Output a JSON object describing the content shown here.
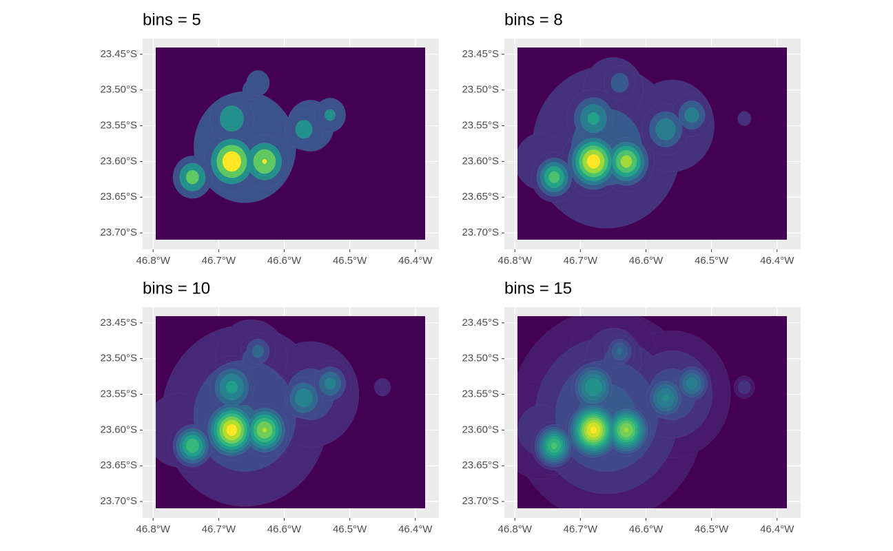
{
  "chart_data": [
    {
      "type": "contour",
      "title": "bins = 5",
      "bins": 5,
      "grid": true,
      "xlim": [
        -46.816,
        -46.364
      ],
      "ylim": [
        -23.723,
        -23.428
      ],
      "xticks": [
        {
          "value": -46.8,
          "label": "46.8°W"
        },
        {
          "value": -46.7,
          "label": "46.7°W"
        },
        {
          "value": -46.6,
          "label": "46.6°W"
        },
        {
          "value": -46.5,
          "label": "46.5°W"
        },
        {
          "value": -46.4,
          "label": "46.4°W"
        }
      ],
      "yticks": [
        {
          "value": -23.45,
          "label": "23.45°S"
        },
        {
          "value": -23.5,
          "label": "23.50°S"
        },
        {
          "value": -23.55,
          "label": "23.55°S"
        },
        {
          "value": -23.6,
          "label": "23.60°S"
        },
        {
          "value": -23.65,
          "label": "23.65°S"
        },
        {
          "value": -23.7,
          "label": "23.70°S"
        }
      ]
    },
    {
      "type": "contour",
      "title": "bins = 8",
      "bins": 8,
      "grid": true,
      "xlim": [
        -46.816,
        -46.364
      ],
      "ylim": [
        -23.723,
        -23.428
      ],
      "xticks": [
        {
          "value": -46.8,
          "label": "46.8°W"
        },
        {
          "value": -46.7,
          "label": "46.7°W"
        },
        {
          "value": -46.6,
          "label": "46.6°W"
        },
        {
          "value": -46.5,
          "label": "46.5°W"
        },
        {
          "value": -46.4,
          "label": "46.4°W"
        }
      ],
      "yticks": [
        {
          "value": -23.45,
          "label": "23.45°S"
        },
        {
          "value": -23.5,
          "label": "23.50°S"
        },
        {
          "value": -23.55,
          "label": "23.55°S"
        },
        {
          "value": -23.6,
          "label": "23.60°S"
        },
        {
          "value": -23.65,
          "label": "23.65°S"
        },
        {
          "value": -23.7,
          "label": "23.70°S"
        }
      ]
    },
    {
      "type": "contour",
      "title": "bins = 10",
      "bins": 10,
      "grid": true,
      "xlim": [
        -46.816,
        -46.364
      ],
      "ylim": [
        -23.723,
        -23.428
      ],
      "xticks": [
        {
          "value": -46.8,
          "label": "46.8°W"
        },
        {
          "value": -46.7,
          "label": "46.7°W"
        },
        {
          "value": -46.6,
          "label": "46.6°W"
        },
        {
          "value": -46.5,
          "label": "46.5°W"
        },
        {
          "value": -46.4,
          "label": "46.4°W"
        }
      ],
      "yticks": [
        {
          "value": -23.45,
          "label": "23.45°S"
        },
        {
          "value": -23.5,
          "label": "23.50°S"
        },
        {
          "value": -23.55,
          "label": "23.55°S"
        },
        {
          "value": -23.6,
          "label": "23.60°S"
        },
        {
          "value": -23.65,
          "label": "23.65°S"
        },
        {
          "value": -23.7,
          "label": "23.70°S"
        }
      ]
    },
    {
      "type": "contour",
      "title": "bins = 15",
      "bins": 15,
      "grid": true,
      "xlim": [
        -46.816,
        -46.364
      ],
      "ylim": [
        -23.723,
        -23.428
      ],
      "xticks": [
        {
          "value": -46.8,
          "label": "46.8°W"
        },
        {
          "value": -46.7,
          "label": "46.7°W"
        },
        {
          "value": -46.6,
          "label": "46.6°W"
        },
        {
          "value": -46.5,
          "label": "46.5°W"
        },
        {
          "value": -46.4,
          "label": "46.4°W"
        }
      ],
      "yticks": [
        {
          "value": -23.45,
          "label": "23.45°S"
        },
        {
          "value": -23.5,
          "label": "23.50°S"
        },
        {
          "value": -23.55,
          "label": "23.55°S"
        },
        {
          "value": -23.6,
          "label": "23.60°S"
        },
        {
          "value": -23.65,
          "label": "23.65°S"
        },
        {
          "value": -23.7,
          "label": "23.70°S"
        }
      ]
    }
  ]
}
